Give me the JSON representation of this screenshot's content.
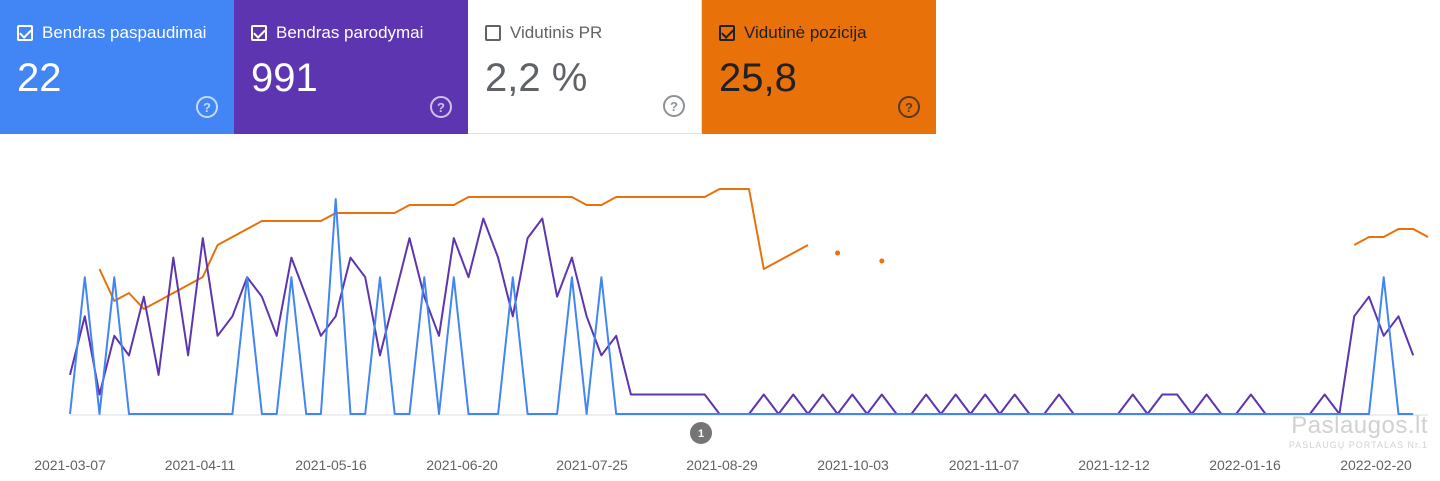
{
  "metrics": [
    {
      "label": "Bendras paspaudimai",
      "value": "22",
      "checked": true,
      "bg": "#4285f4",
      "fg": "#ffffff"
    },
    {
      "label": "Bendras parodymai",
      "value": "991",
      "checked": true,
      "bg": "#5e35b1",
      "fg": "#ffffff"
    },
    {
      "label": "Vidutinis PR",
      "value": "2,2 %",
      "checked": false,
      "bg": "#ffffff",
      "fg": "#5f6368"
    },
    {
      "label": "Vidutinė pozicija",
      "value": "25,8",
      "checked": true,
      "bg": "#e8710a",
      "fg": "#202124"
    }
  ],
  "help_glyph": "?",
  "chart_data": {
    "type": "line",
    "x_labels": [
      "2021-03-07",
      "2021-04-11",
      "2021-05-16",
      "2021-06-20",
      "2021-07-25",
      "2021-08-29",
      "2021-10-03",
      "2021-11-07",
      "2021-12-12",
      "2022-01-16",
      "2022-02-20"
    ],
    "series": [
      {
        "color": "#e8710a",
        "values": [
          null,
          null,
          10,
          14,
          13,
          15,
          14,
          13,
          12,
          11,
          7,
          6,
          5,
          4,
          4,
          4,
          4,
          4,
          3,
          3,
          3,
          3,
          3,
          2,
          2,
          2,
          2,
          1,
          1,
          1,
          1,
          1,
          1,
          1,
          1,
          2,
          2,
          1,
          1,
          1,
          1,
          1,
          1,
          1,
          0,
          0,
          0,
          10,
          9,
          8,
          7,
          null,
          8,
          null,
          null,
          9,
          null,
          null,
          null,
          null,
          null,
          null,
          null,
          null,
          null,
          null,
          null,
          null,
          null,
          null,
          null,
          null,
          null,
          null,
          null,
          null,
          null,
          null,
          null,
          null,
          null,
          null,
          null,
          null,
          null,
          null,
          null,
          7,
          6,
          6,
          5,
          5,
          6
        ]
      },
      {
        "color": "#5e35b1",
        "values": [
          2,
          5,
          1,
          4,
          3,
          6,
          2,
          8,
          3,
          9,
          4,
          5,
          7,
          6,
          4,
          8,
          6,
          4,
          5,
          8,
          7,
          3,
          6,
          9,
          6,
          4,
          9,
          7,
          10,
          8,
          5,
          9,
          10,
          6,
          8,
          5,
          3,
          4,
          1,
          1,
          1,
          1,
          1,
          1,
          0,
          0,
          0,
          1,
          0,
          1,
          0,
          1,
          0,
          1,
          0,
          1,
          0,
          0,
          1,
          0,
          1,
          0,
          1,
          0,
          1,
          0,
          0,
          1,
          0,
          0,
          0,
          0,
          1,
          0,
          1,
          1,
          0,
          1,
          0,
          0,
          1,
          0,
          0,
          0,
          0,
          1,
          0,
          5,
          6,
          4,
          5,
          3
        ]
      },
      {
        "color": "#4285f4",
        "values": [
          0,
          7,
          0,
          7,
          0,
          0,
          0,
          0,
          0,
          0,
          0,
          0,
          7,
          0,
          0,
          7,
          0,
          0,
          11,
          0,
          0,
          7,
          0,
          0,
          7,
          0,
          7,
          0,
          0,
          0,
          7,
          0,
          0,
          0,
          7,
          0,
          7,
          0,
          0,
          0,
          0,
          0,
          0,
          0,
          0,
          0,
          0,
          0,
          0,
          0,
          0,
          0,
          0,
          0,
          0,
          0,
          0,
          0,
          0,
          0,
          0,
          0,
          0,
          0,
          0,
          0,
          0,
          0,
          0,
          0,
          0,
          0,
          0,
          0,
          0,
          0,
          0,
          0,
          0,
          0,
          0,
          0,
          0,
          0,
          0,
          0,
          0,
          0,
          0,
          7,
          0,
          0
        ]
      }
    ],
    "annotation": "1"
  },
  "watermark": {
    "line1": "Paslaugos.lt",
    "line2": "PASLAUGŲ PORTALAS",
    "badge": "Nr.1"
  }
}
